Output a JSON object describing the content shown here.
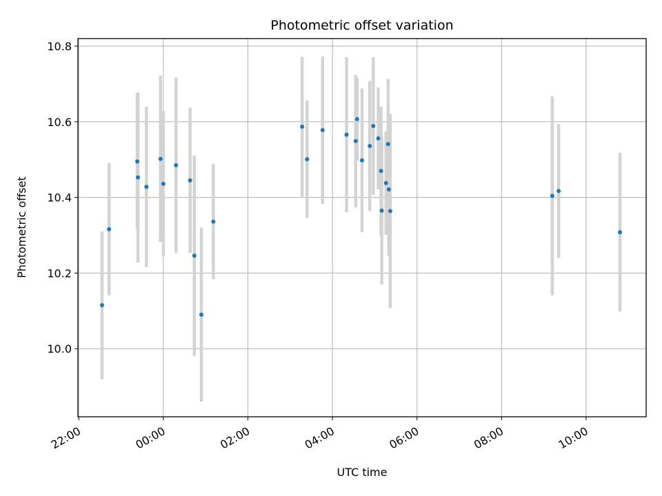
{
  "chart_data": {
    "type": "scatter",
    "title": "Photometric offset variation",
    "xlabel": "UTC time",
    "ylabel": "Photometric offset",
    "x_ticks": [
      "22:00",
      "00:00",
      "02:00",
      "04:00",
      "06:00",
      "08:00",
      "10:00"
    ],
    "y_ticks": [
      "10.0",
      "10.2",
      "10.4",
      "10.6",
      "10.8"
    ],
    "y_tick_values": [
      10.0,
      10.2,
      10.4,
      10.6,
      10.8
    ],
    "xlim_hours_since_22": [
      -0.02,
      13.42
    ],
    "ylim": [
      9.82,
      10.82
    ],
    "grid": true,
    "marker_color": "#1f77b4",
    "errorbar_color": "#d3d3d3",
    "x_ticklabel_rotation": "30 degrees",
    "points": [
      {
        "time": "22:33",
        "y": 10.115,
        "yerr": 0.195
      },
      {
        "time": "22:43",
        "y": 10.316,
        "yerr": 0.175
      },
      {
        "time": "23:23",
        "y": 10.495,
        "yerr": 0.18
      },
      {
        "time": "23:24",
        "y": 10.453,
        "yerr": 0.225
      },
      {
        "time": "23:36",
        "y": 10.428,
        "yerr": 0.212
      },
      {
        "time": "23:56",
        "y": 10.502,
        "yerr": 0.22
      },
      {
        "time": "00:00",
        "y": 10.436,
        "yerr": 0.192
      },
      {
        "time": "00:18",
        "y": 10.485,
        "yerr": 0.232
      },
      {
        "time": "00:38",
        "y": 10.445,
        "yerr": 0.192
      },
      {
        "time": "00:44",
        "y": 10.246,
        "yerr": 0.265
      },
      {
        "time": "00:54",
        "y": 10.09,
        "yerr": 0.23
      },
      {
        "time": "01:11",
        "y": 10.336,
        "yerr": 0.152
      },
      {
        "time": "03:17",
        "y": 10.587,
        "yerr": 0.185
      },
      {
        "time": "03:24",
        "y": 10.501,
        "yerr": 0.155
      },
      {
        "time": "03:46",
        "y": 10.578,
        "yerr": 0.195
      },
      {
        "time": "04:20",
        "y": 10.566,
        "yerr": 0.205
      },
      {
        "time": "04:33",
        "y": 10.549,
        "yerr": 0.175
      },
      {
        "time": "04:35",
        "y": 10.607,
        "yerr": 0.11
      },
      {
        "time": "04:42",
        "y": 10.498,
        "yerr": 0.19
      },
      {
        "time": "04:53",
        "y": 10.536,
        "yerr": 0.172
      },
      {
        "time": "04:58",
        "y": 10.589,
        "yerr": 0.182
      },
      {
        "time": "05:05",
        "y": 10.556,
        "yerr": 0.135
      },
      {
        "time": "05:09",
        "y": 10.47,
        "yerr": 0.17
      },
      {
        "time": "05:10",
        "y": 10.365,
        "yerr": 0.195
      },
      {
        "time": "05:16",
        "y": 10.438,
        "yerr": 0.137
      },
      {
        "time": "05:19",
        "y": 10.541,
        "yerr": 0.172
      },
      {
        "time": "05:20",
        "y": 10.421,
        "yerr": 0.175
      },
      {
        "time": "05:22",
        "y": 10.364,
        "yerr": 0.257
      },
      {
        "time": "09:12",
        "y": 10.404,
        "yerr": 0.263
      },
      {
        "time": "09:21",
        "y": 10.417,
        "yerr": 0.177
      },
      {
        "time": "10:48",
        "y": 10.308,
        "yerr": 0.21
      }
    ]
  }
}
